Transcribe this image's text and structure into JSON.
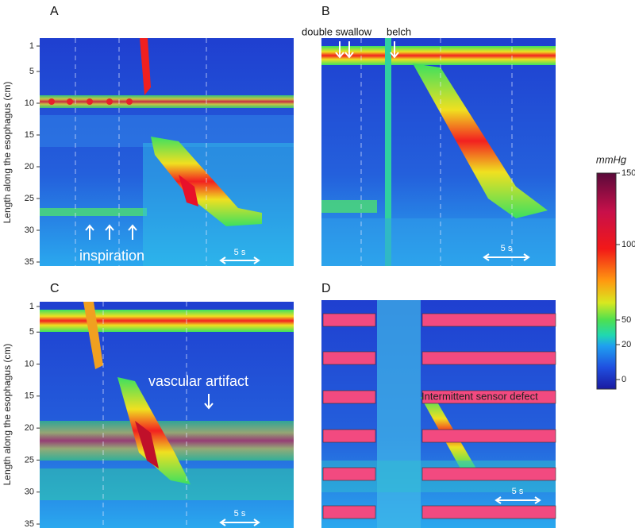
{
  "panels": [
    {
      "label": "A",
      "y_axis_label": "Length along the esophagus (cm)",
      "y_ticks": [
        1,
        5,
        10,
        15,
        20,
        25,
        30,
        35
      ],
      "annotations": [
        "inspiration"
      ],
      "scale_bar": "5 s"
    },
    {
      "label": "B",
      "annotations": [
        "double swallow",
        "belch"
      ],
      "scale_bar": "5 s"
    },
    {
      "label": "C",
      "y_axis_label": "Length along the esophagus (cm)",
      "y_ticks": [
        1,
        5,
        10,
        15,
        20,
        25,
        30,
        35
      ],
      "annotations": [
        "vascular artifact"
      ],
      "scale_bar": "5 s"
    },
    {
      "label": "D",
      "annotations": [
        "Intermittent sensor defect"
      ],
      "scale_bar": "5 s"
    }
  ],
  "colorbar": {
    "unit": "mmHg",
    "ticks": [
      150,
      100,
      50,
      20,
      0
    ]
  }
}
